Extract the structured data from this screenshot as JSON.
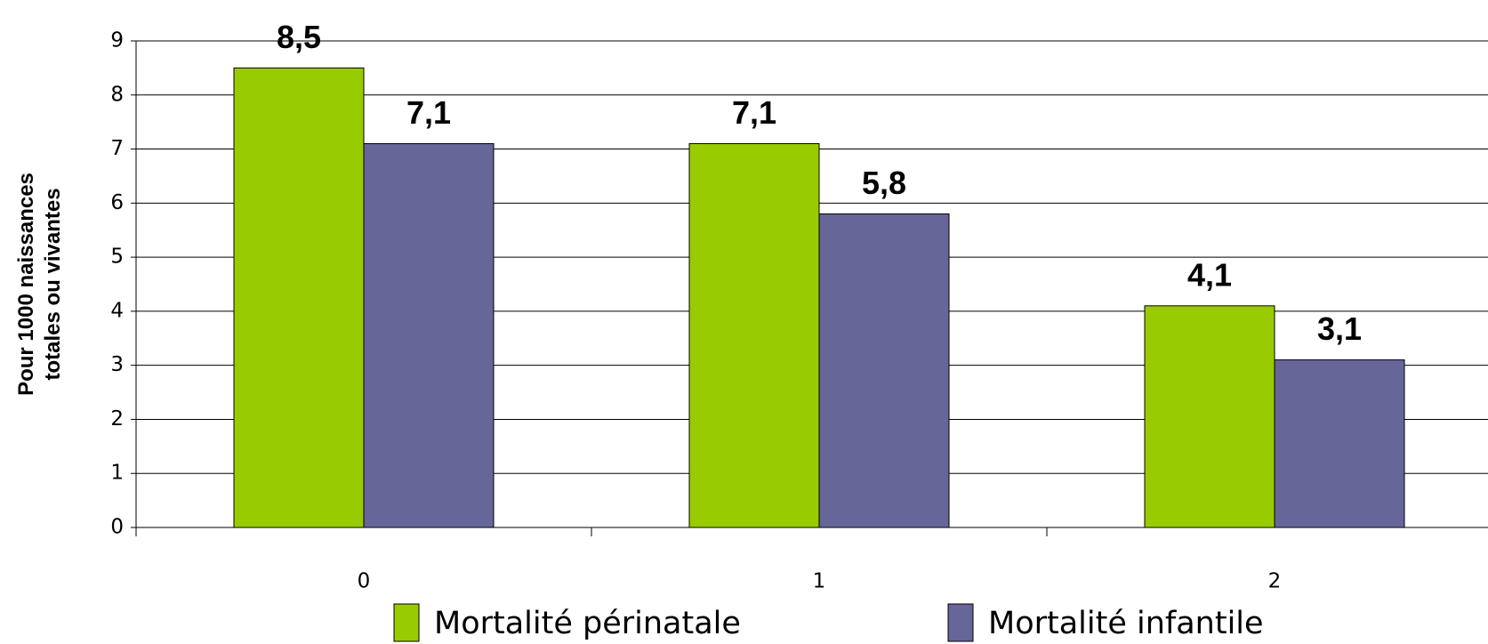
{
  "chart_data": {
    "type": "bar",
    "ylabel": [
      "Pour 1000 naissances",
      "totales ou vivantes"
    ],
    "categories": [
      "0",
      "1",
      "2"
    ],
    "series": [
      {
        "name": "Mortalité périnatale",
        "color": "#99cc00",
        "values": [
          8.5,
          7.1,
          4.1
        ],
        "value_labels": [
          "8,5",
          "7,1",
          "4,1"
        ]
      },
      {
        "name": "Mortalité infantile",
        "color": "#666699",
        "values": [
          7.1,
          5.8,
          3.1
        ],
        "value_labels": [
          "7,1",
          "5,8",
          "3,1"
        ]
      }
    ],
    "ylim": [
      0,
      9
    ],
    "yticks": [
      0,
      1,
      2,
      3,
      4,
      5,
      6,
      7,
      8,
      9
    ],
    "grid": true,
    "legend": "bottom"
  }
}
